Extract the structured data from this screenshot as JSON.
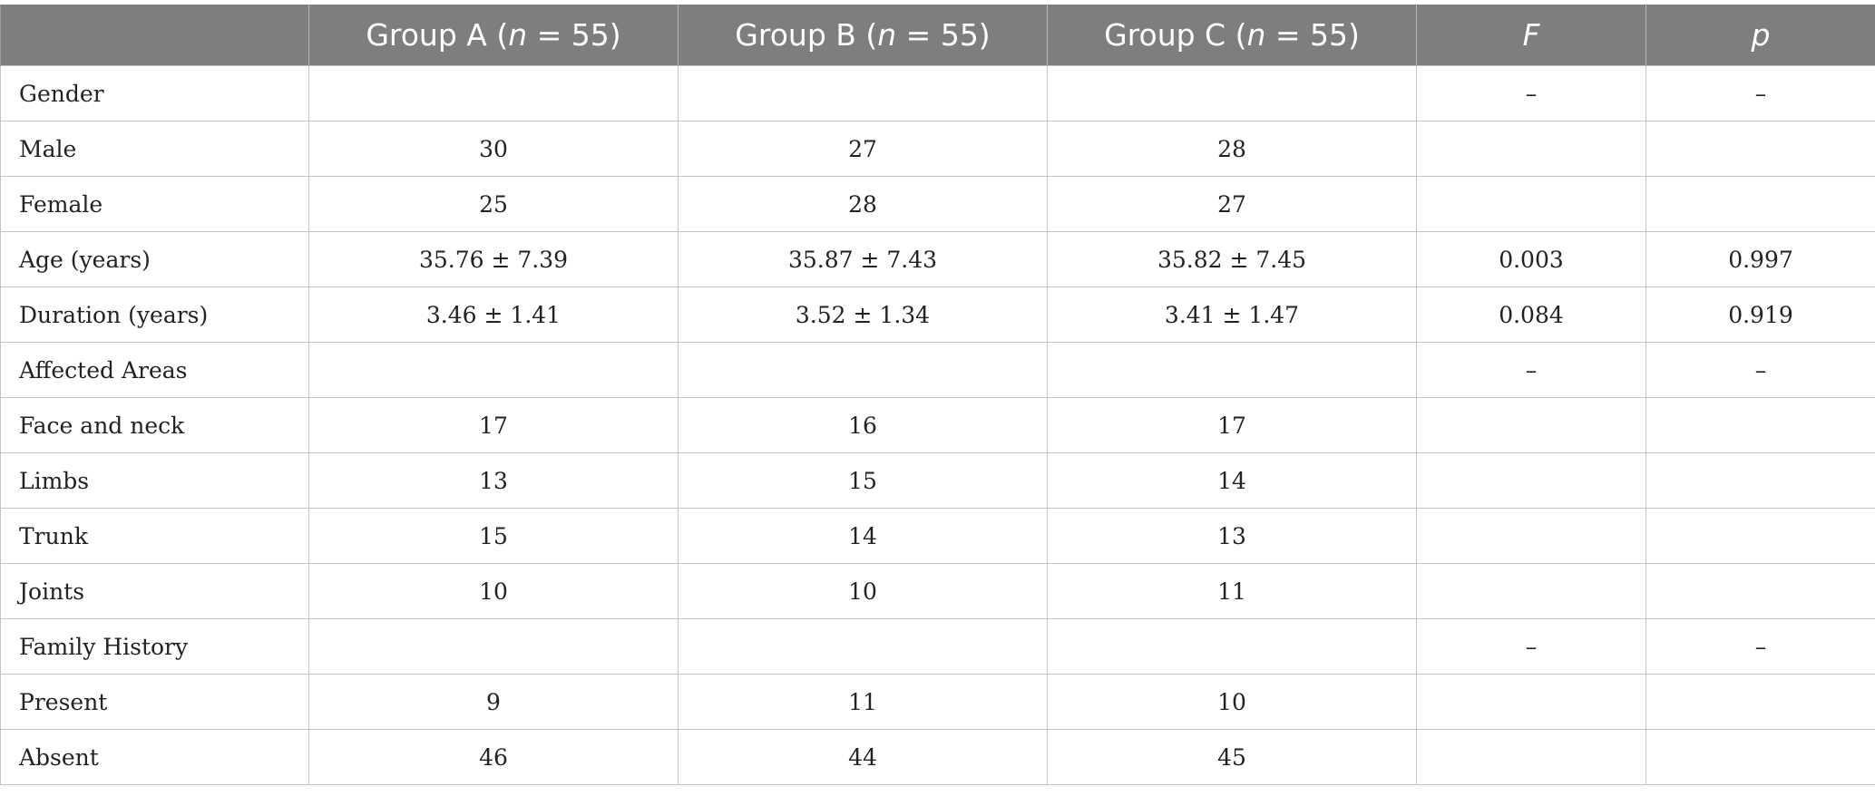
{
  "table": {
    "headers": [
      {
        "text": "",
        "italic": false
      },
      {
        "pre": "Group A (",
        "ital": "n",
        "post": " = 55)"
      },
      {
        "pre": "Group B (",
        "ital": "n",
        "post": " = 55)"
      },
      {
        "pre": "Group C (",
        "ital": "n",
        "post": " = 55)"
      },
      {
        "text": "F",
        "italic": true
      },
      {
        "text": "p",
        "italic": true
      }
    ],
    "rows": [
      [
        "Gender",
        "",
        "",
        "",
        "–",
        "–"
      ],
      [
        "Male",
        "30",
        "27",
        "28",
        "",
        ""
      ],
      [
        "Female",
        "25",
        "28",
        "27",
        "",
        ""
      ],
      [
        "Age (years)",
        "35.76 ± 7.39",
        "35.87 ± 7.43",
        "35.82 ± 7.45",
        "0.003",
        "0.997"
      ],
      [
        "Duration (years)",
        "3.46 ± 1.41",
        "3.52 ± 1.34",
        "3.41 ± 1.47",
        "0.084",
        "0.919"
      ],
      [
        "Affected Areas",
        "",
        "",
        "",
        "–",
        "–"
      ],
      [
        "Face and neck",
        "17",
        "16",
        "17",
        "",
        ""
      ],
      [
        "Limbs",
        "13",
        "15",
        "14",
        "",
        ""
      ],
      [
        "Trunk",
        "15",
        "14",
        "13",
        "",
        ""
      ],
      [
        "Joints",
        "10",
        "10",
        "11",
        "",
        ""
      ],
      [
        "Family History",
        "",
        "",
        "",
        "–",
        "–"
      ],
      [
        "Present",
        "9",
        "11",
        "10",
        "",
        ""
      ],
      [
        "Absent",
        "46",
        "44",
        "45",
        "",
        ""
      ]
    ]
  }
}
